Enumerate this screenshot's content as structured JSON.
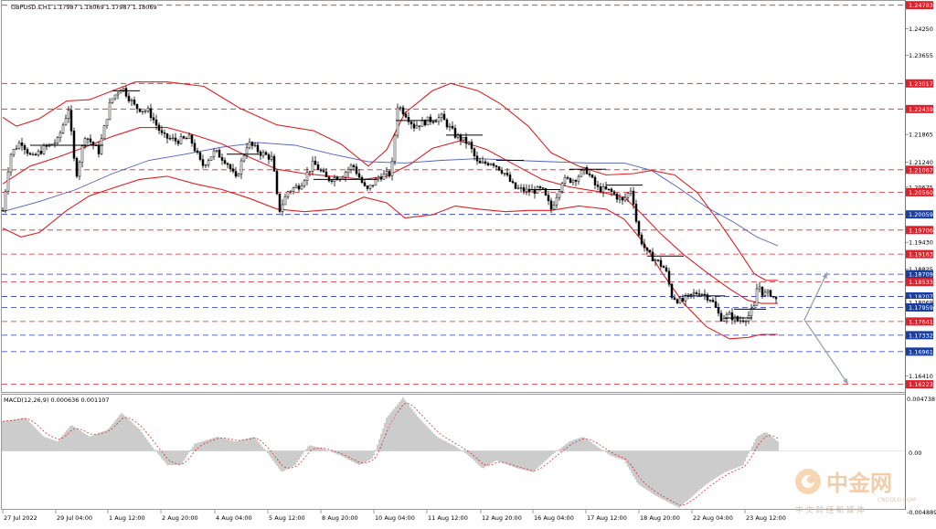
{
  "header": {
    "symbol_line": "GBPUSD.s,H1  1.17987 1.18069 1.17987 1.18069"
  },
  "macd": {
    "label": "MACD(12,26,9) 0.000636 0.001107",
    "axis_top": "0.004738",
    "axis_zero": "0.00",
    "axis_bottom": "-0.004889"
  },
  "price_axis": {
    "labels": [
      {
        "price": 1.24783,
        "text": "1.24783",
        "kind": "box-red"
      },
      {
        "price": 1.2425,
        "text": "1.24250",
        "kind": "plain"
      },
      {
        "price": 1.23655,
        "text": "1.23655",
        "kind": "plain"
      },
      {
        "price": 1.2306,
        "text": "1.23060",
        "kind": "plain"
      },
      {
        "price": 1.23017,
        "text": "1.23017",
        "kind": "box-red"
      },
      {
        "price": 1.22439,
        "text": "1.22439",
        "kind": "box-red"
      },
      {
        "price": 1.21865,
        "text": "1.21865",
        "kind": "plain"
      },
      {
        "price": 1.2124,
        "text": "1.21240",
        "kind": "plain"
      },
      {
        "price": 1.21067,
        "text": "1.21067",
        "kind": "box-red"
      },
      {
        "price": 1.20675,
        "text": "1.20675",
        "kind": "plain"
      },
      {
        "price": 1.2056,
        "text": "1.20560",
        "kind": "box-red"
      },
      {
        "price": 1.20059,
        "text": "1.20059",
        "kind": "box-blue"
      },
      {
        "price": 1.19706,
        "text": "1.19706",
        "kind": "box-red"
      },
      {
        "price": 1.1943,
        "text": "1.19430",
        "kind": "plain"
      },
      {
        "price": 1.19163,
        "text": "1.19163",
        "kind": "box-red"
      },
      {
        "price": 1.18825,
        "text": "1.18825",
        "kind": "plain"
      },
      {
        "price": 1.18709,
        "text": "1.18709",
        "kind": "box-blue"
      },
      {
        "price": 1.18533,
        "text": "1.18533",
        "kind": "box-red"
      },
      {
        "price": 1.18207,
        "text": "1.18207",
        "kind": "box-blue"
      },
      {
        "price": 1.18069,
        "text": "1.18069",
        "kind": "box-white"
      },
      {
        "price": 1.17959,
        "text": "1.17959",
        "kind": "box-blue"
      },
      {
        "price": 1.17641,
        "text": "1.17641",
        "kind": "box-red"
      },
      {
        "price": 1.17332,
        "text": "1.17332",
        "kind": "box-blue"
      },
      {
        "price": 1.1701,
        "text": "1.17010",
        "kind": "plain"
      },
      {
        "price": 1.16961,
        "text": "1.16961",
        "kind": "box-blue"
      },
      {
        "price": 1.1641,
        "text": "1.16410",
        "kind": "plain"
      },
      {
        "price": 1.16223,
        "text": "1.16223",
        "kind": "box-red"
      }
    ]
  },
  "time_axis": {
    "labels": [
      "27 Jul 2022",
      "29 Jul 04:00",
      "1 Aug 12:00",
      "2 Aug 20:00",
      "4 Aug 04:00",
      "5 Aug 12:00",
      "8 Aug 20:00",
      "10 Aug 04:00",
      "11 Aug 12:00",
      "12 Aug 20:00",
      "16 Aug 04:00",
      "17 Aug 12:00",
      "18 Aug 20:00",
      "22 Aug 04:00",
      "23 Aug 12:00"
    ]
  },
  "watermark": {
    "brand_cn": "中金网",
    "brand_url": "CNGOLD.COM",
    "slogan": "中 文 财 经 新 媒 体"
  },
  "colors": {
    "resistance": "#e0202a",
    "support": "#2233bb",
    "bollinger": "#e02020",
    "ma": "#5060c0",
    "candle": "#000000",
    "macd_bar": "#9a9a9a",
    "macd_signal": "#e03030",
    "arrow": "#9aa0b0"
  },
  "chart_data": {
    "type": "candlestick",
    "symbol": "GBPUSD.s",
    "timeframe": "H1",
    "last_price": 1.18069,
    "resistance_levels": [
      1.24783,
      1.23017,
      1.22439,
      1.21067,
      1.2056,
      1.19706,
      1.19163,
      1.18533,
      1.17641,
      1.16223
    ],
    "support_levels": [
      1.20059,
      1.18709,
      1.18207,
      1.17959,
      1.17332,
      1.16961
    ],
    "ylim": [
      1.1605,
      1.2488
    ],
    "macd_params": "12,26,9",
    "macd_values": [
      0.000636,
      0.001107
    ],
    "macd_ylim": [
      -0.004889,
      0.004738
    ],
    "price_path": [
      [
        0,
        1.2015
      ],
      [
        8,
        1.214
      ],
      [
        20,
        1.2172
      ],
      [
        32,
        1.2132
      ],
      [
        45,
        1.2155
      ],
      [
        60,
        1.2172
      ],
      [
        72,
        1.2245
      ],
      [
        80,
        1.209
      ],
      [
        90,
        1.2185
      ],
      [
        105,
        1.2148
      ],
      [
        118,
        1.2262
      ],
      [
        130,
        1.2295
      ],
      [
        145,
        1.2248
      ],
      [
        160,
        1.2238
      ],
      [
        175,
        1.2182
      ],
      [
        190,
        1.2172
      ],
      [
        205,
        1.2178
      ],
      [
        218,
        1.2115
      ],
      [
        232,
        1.2148
      ],
      [
        245,
        1.2125
      ],
      [
        255,
        1.2085
      ],
      [
        268,
        1.2168
      ],
      [
        282,
        1.2145
      ],
      [
        295,
        1.2132
      ],
      [
        302,
        1.2012
      ],
      [
        312,
        1.2058
      ],
      [
        325,
        1.2072
      ],
      [
        340,
        1.2122
      ],
      [
        355,
        1.2085
      ],
      [
        370,
        1.2092
      ],
      [
        383,
        1.2118
      ],
      [
        398,
        1.2058
      ],
      [
        412,
        1.2092
      ],
      [
        425,
        1.2098
      ],
      [
        432,
        1.2252
      ],
      [
        440,
        1.2235
      ],
      [
        450,
        1.2205
      ],
      [
        465,
        1.2218
      ],
      [
        480,
        1.2225
      ],
      [
        495,
        1.2185
      ],
      [
        510,
        1.2165
      ],
      [
        520,
        1.2118
      ],
      [
        535,
        1.2125
      ],
      [
        548,
        1.2102
      ],
      [
        560,
        1.2065
      ],
      [
        575,
        1.2058
      ],
      [
        590,
        1.2062
      ],
      [
        600,
        1.2018
      ],
      [
        612,
        1.2082
      ],
      [
        625,
        1.2085
      ],
      [
        638,
        1.2108
      ],
      [
        650,
        1.2065
      ],
      [
        665,
        1.2058
      ],
      [
        678,
        1.2035
      ],
      [
        688,
        1.2065
      ],
      [
        695,
        1.1962
      ],
      [
        705,
        1.1918
      ],
      [
        715,
        1.1902
      ],
      [
        725,
        1.1882
      ],
      [
        732,
        1.1822
      ],
      [
        742,
        1.1808
      ],
      [
        752,
        1.1822
      ],
      [
        762,
        1.1832
      ],
      [
        775,
        1.1815
      ],
      [
        785,
        1.1772
      ],
      [
        795,
        1.1778
      ],
      [
        805,
        1.1765
      ],
      [
        815,
        1.1775
      ],
      [
        822,
        1.1795
      ],
      [
        826,
        1.1852
      ],
      [
        832,
        1.1825
      ],
      [
        840,
        1.1828
      ],
      [
        848,
        1.1807
      ]
    ],
    "bollinger_upper": [
      [
        0,
        1.2225
      ],
      [
        15,
        1.2205
      ],
      [
        40,
        1.2222
      ],
      [
        70,
        1.2262
      ],
      [
        95,
        1.2265
      ],
      [
        120,
        1.2285
      ],
      [
        145,
        1.2305
      ],
      [
        180,
        1.2305
      ],
      [
        220,
        1.2295
      ],
      [
        260,
        1.2245
      ],
      [
        300,
        1.2208
      ],
      [
        340,
        1.2195
      ],
      [
        370,
        1.2165
      ],
      [
        400,
        1.2115
      ],
      [
        420,
        1.2152
      ],
      [
        440,
        1.2235
      ],
      [
        470,
        1.2285
      ],
      [
        490,
        1.2302
      ],
      [
        520,
        1.2285
      ],
      [
        545,
        1.2255
      ],
      [
        575,
        1.2205
      ],
      [
        600,
        1.2145
      ],
      [
        630,
        1.2115
      ],
      [
        660,
        1.2095
      ],
      [
        690,
        1.2098
      ],
      [
        710,
        1.2105
      ],
      [
        735,
        1.2095
      ],
      [
        760,
        1.2055
      ],
      [
        785,
        1.1985
      ],
      [
        805,
        1.1925
      ],
      [
        822,
        1.1872
      ],
      [
        835,
        1.1857
      ],
      [
        848,
        1.1857
      ]
    ],
    "bollinger_middle": [
      [
        0,
        1.2075
      ],
      [
        30,
        1.2115
      ],
      [
        60,
        1.2135
      ],
      [
        90,
        1.2158
      ],
      [
        120,
        1.2182
      ],
      [
        150,
        1.2202
      ],
      [
        180,
        1.2202
      ],
      [
        210,
        1.2185
      ],
      [
        240,
        1.2165
      ],
      [
        270,
        1.2135
      ],
      [
        300,
        1.2108
      ],
      [
        330,
        1.2098
      ],
      [
        360,
        1.2092
      ],
      [
        395,
        1.2085
      ],
      [
        420,
        1.2092
      ],
      [
        445,
        1.2118
      ],
      [
        470,
        1.2155
      ],
      [
        500,
        1.2172
      ],
      [
        530,
        1.2152
      ],
      [
        560,
        1.2118
      ],
      [
        590,
        1.2085
      ],
      [
        620,
        1.2068
      ],
      [
        650,
        1.2058
      ],
      [
        680,
        1.2045
      ],
      [
        700,
        1.2005
      ],
      [
        720,
        1.1962
      ],
      [
        745,
        1.1915
      ],
      [
        770,
        1.1875
      ],
      [
        795,
        1.1838
      ],
      [
        815,
        1.1812
      ],
      [
        830,
        1.1805
      ],
      [
        848,
        1.1805
      ]
    ],
    "bollinger_lower": [
      [
        0,
        1.1975
      ],
      [
        20,
        1.1955
      ],
      [
        40,
        1.1965
      ],
      [
        70,
        1.2015
      ],
      [
        95,
        1.2048
      ],
      [
        120,
        1.2065
      ],
      [
        150,
        1.2085
      ],
      [
        180,
        1.2092
      ],
      [
        210,
        1.2075
      ],
      [
        240,
        1.2062
      ],
      [
        270,
        1.2042
      ],
      [
        300,
        1.2018
      ],
      [
        330,
        1.2012
      ],
      [
        365,
        1.2018
      ],
      [
        395,
        1.2045
      ],
      [
        420,
        1.2032
      ],
      [
        440,
        1.1998
      ],
      [
        470,
        1.2005
      ],
      [
        495,
        1.2025
      ],
      [
        520,
        1.2018
      ],
      [
        550,
        1.2012
      ],
      [
        575,
        1.2015
      ],
      [
        600,
        1.2015
      ],
      [
        630,
        1.2025
      ],
      [
        660,
        1.2018
      ],
      [
        680,
        1.1995
      ],
      [
        700,
        1.1945
      ],
      [
        720,
        1.1878
      ],
      [
        745,
        1.1805
      ],
      [
        770,
        1.1752
      ],
      [
        795,
        1.1725
      ],
      [
        815,
        1.1728
      ],
      [
        830,
        1.1735
      ],
      [
        848,
        1.1735
      ]
    ],
    "moving_average": [
      [
        0,
        1.2012
      ],
      [
        40,
        1.2035
      ],
      [
        80,
        1.2062
      ],
      [
        120,
        1.2098
      ],
      [
        160,
        1.2128
      ],
      [
        200,
        1.2142
      ],
      [
        240,
        1.2158
      ],
      [
        280,
        1.2168
      ],
      [
        320,
        1.2162
      ],
      [
        360,
        1.2142
      ],
      [
        400,
        1.2125
      ],
      [
        440,
        1.2122
      ],
      [
        480,
        1.2128
      ],
      [
        520,
        1.2132
      ],
      [
        560,
        1.2128
      ],
      [
        600,
        1.2125
      ],
      [
        640,
        1.2122
      ],
      [
        680,
        1.2122
      ],
      [
        710,
        1.2105
      ],
      [
        740,
        1.2065
      ],
      [
        770,
        1.2022
      ],
      [
        800,
        1.1988
      ],
      [
        825,
        1.1955
      ],
      [
        848,
        1.1935
      ]
    ],
    "macd_histogram_path": [
      [
        0,
        0.0025
      ],
      [
        25,
        0.0028
      ],
      [
        45,
        0.0012
      ],
      [
        60,
        0.0008
      ],
      [
        75,
        0.0022
      ],
      [
        95,
        0.0012
      ],
      [
        115,
        0.0018
      ],
      [
        130,
        0.0032
      ],
      [
        150,
        0.0018
      ],
      [
        165,
        0.0002
      ],
      [
        180,
        -0.0012
      ],
      [
        195,
        -0.0012
      ],
      [
        210,
        0.0006
      ],
      [
        235,
        0.0012
      ],
      [
        255,
        0.0008
      ],
      [
        275,
        0.0012
      ],
      [
        290,
        -0.0002
      ],
      [
        305,
        -0.0018
      ],
      [
        320,
        -0.0012
      ],
      [
        335,
        0.0005
      ],
      [
        350,
        0.0002
      ],
      [
        370,
        -0.0004
      ],
      [
        390,
        -0.0012
      ],
      [
        405,
        -0.0006
      ],
      [
        420,
        0.0028
      ],
      [
        438,
        0.0045
      ],
      [
        455,
        0.0028
      ],
      [
        475,
        0.0012
      ],
      [
        495,
        0.0004
      ],
      [
        510,
        -0.0004
      ],
      [
        525,
        -0.0015
      ],
      [
        540,
        -0.0008
      ],
      [
        560,
        -0.0014
      ],
      [
        580,
        -0.0018
      ],
      [
        600,
        -0.0004
      ],
      [
        620,
        0.0008
      ],
      [
        635,
        0.0012
      ],
      [
        650,
        0.0004
      ],
      [
        665,
        -0.0004
      ],
      [
        680,
        -0.0008
      ],
      [
        695,
        -0.0028
      ],
      [
        715,
        -0.0038
      ],
      [
        740,
        -0.0048
      ],
      [
        755,
        -0.0038
      ],
      [
        770,
        -0.0028
      ],
      [
        790,
        -0.0018
      ],
      [
        810,
        -0.0012
      ],
      [
        825,
        0.0012
      ],
      [
        835,
        0.0016
      ],
      [
        848,
        0.0008
      ]
    ],
    "projection_arrows": [
      {
        "from": [
          880,
          1.1768
        ],
        "to": [
          905,
          1.1875
        ]
      },
      {
        "from": [
          880,
          1.1768
        ],
        "to": [
          928,
          1.1622
        ]
      }
    ]
  }
}
